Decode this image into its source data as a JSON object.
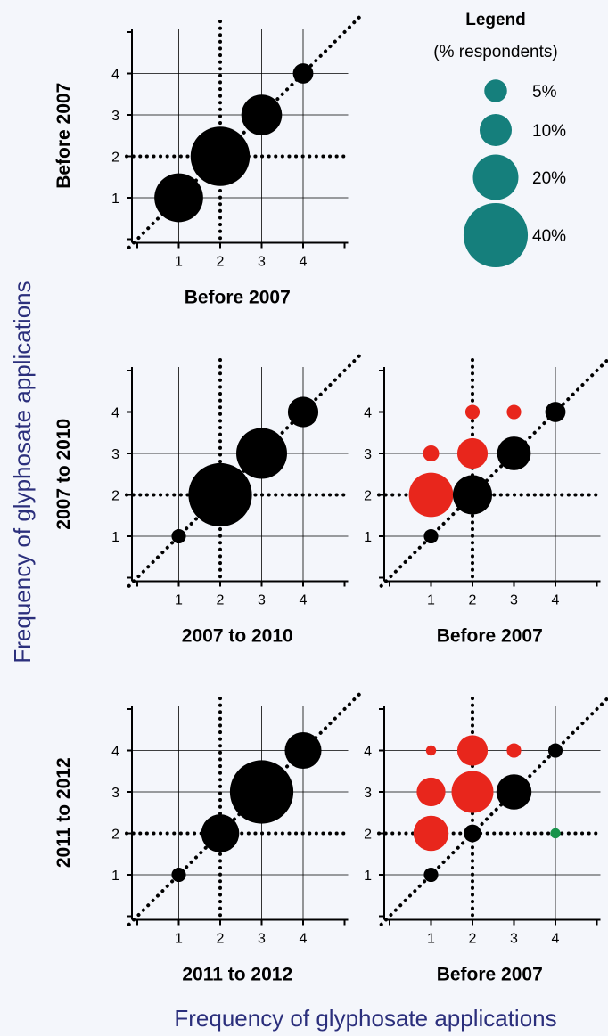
{
  "figure": {
    "ylabel": "Frequency of glyphosate applications",
    "xlabel": "Frequency of glyphosate applications"
  },
  "colors": {
    "same": "#000000",
    "increase": "#e8261c",
    "decrease": "#17934a",
    "legend": "#157f7c",
    "axis_title": "#2b2f7c",
    "grid": "#000000"
  },
  "legend": {
    "title": "Legend",
    "subtitle": "(% respondents)",
    "items": [
      {
        "label": "5%",
        "value": 5
      },
      {
        "label": "10%",
        "value": 10
      },
      {
        "label": "20%",
        "value": 20
      },
      {
        "label": "40%",
        "value": 40
      }
    ]
  },
  "chart_data": [
    {
      "type": "scatter",
      "id": "p1",
      "xlabel": "Before 2007",
      "ylabel": "Before 2007",
      "ticks": [
        1,
        2,
        3,
        4
      ],
      "xlim": [
        0,
        5
      ],
      "ylim": [
        0,
        5
      ],
      "reference_lines": {
        "x": 2,
        "y": 2,
        "diagonal": true
      },
      "points": [
        {
          "x": 1,
          "y": 1,
          "pct": 23,
          "group": "same"
        },
        {
          "x": 2,
          "y": 2,
          "pct": 34,
          "group": "same"
        },
        {
          "x": 3,
          "y": 3,
          "pct": 16,
          "group": "same"
        },
        {
          "x": 4,
          "y": 4,
          "pct": 4,
          "group": "same"
        }
      ]
    },
    {
      "type": "scatter",
      "id": "p2",
      "xlabel": "2007 to 2010",
      "ylabel": "2007 to 2010",
      "ticks": [
        1,
        2,
        3,
        4
      ],
      "xlim": [
        0,
        5
      ],
      "ylim": [
        0,
        5
      ],
      "reference_lines": {
        "x": 2,
        "y": 2,
        "diagonal": true
      },
      "points": [
        {
          "x": 1,
          "y": 1,
          "pct": 2,
          "group": "same"
        },
        {
          "x": 2,
          "y": 2,
          "pct": 39,
          "group": "same"
        },
        {
          "x": 3,
          "y": 3,
          "pct": 25,
          "group": "same"
        },
        {
          "x": 4,
          "y": 4,
          "pct": 9,
          "group": "same"
        }
      ]
    },
    {
      "type": "scatter",
      "id": "p3",
      "xlabel": "Before 2007",
      "ylabel": "",
      "ticks": [
        1,
        2,
        3,
        4
      ],
      "xlim": [
        0,
        5
      ],
      "ylim": [
        0,
        5
      ],
      "reference_lines": {
        "x": 2,
        "y": 2,
        "diagonal": true
      },
      "points": [
        {
          "x": 1,
          "y": 1,
          "pct": 2,
          "group": "same"
        },
        {
          "x": 1,
          "y": 2,
          "pct": 19,
          "group": "increase"
        },
        {
          "x": 1,
          "y": 3,
          "pct": 2.5,
          "group": "increase"
        },
        {
          "x": 2,
          "y": 2,
          "pct": 15,
          "group": "same"
        },
        {
          "x": 2,
          "y": 3,
          "pct": 9,
          "group": "increase"
        },
        {
          "x": 2,
          "y": 4,
          "pct": 2,
          "group": "increase"
        },
        {
          "x": 3,
          "y": 3,
          "pct": 11,
          "group": "same"
        },
        {
          "x": 3,
          "y": 4,
          "pct": 2,
          "group": "increase"
        },
        {
          "x": 4,
          "y": 4,
          "pct": 4,
          "group": "same"
        }
      ]
    },
    {
      "type": "scatter",
      "id": "p4",
      "xlabel": "2011 to 2012",
      "ylabel": "2011 to 2012",
      "ticks": [
        1,
        2,
        3,
        4
      ],
      "xlim": [
        0,
        5
      ],
      "ylim": [
        0,
        5
      ],
      "reference_lines": {
        "x": 2,
        "y": 2,
        "diagonal": true
      },
      "points": [
        {
          "x": 1,
          "y": 1,
          "pct": 2,
          "group": "same"
        },
        {
          "x": 2,
          "y": 2,
          "pct": 14,
          "group": "same"
        },
        {
          "x": 3,
          "y": 3,
          "pct": 39,
          "group": "same"
        },
        {
          "x": 4,
          "y": 4,
          "pct": 13,
          "group": "same"
        }
      ]
    },
    {
      "type": "scatter",
      "id": "p5",
      "xlabel": "Before 2007",
      "ylabel": "",
      "ticks": [
        1,
        2,
        3,
        4
      ],
      "xlim": [
        0,
        5
      ],
      "ylim": [
        0,
        5
      ],
      "reference_lines": {
        "x": 2,
        "y": 2,
        "diagonal": true
      },
      "points": [
        {
          "x": 1,
          "y": 1,
          "pct": 2,
          "group": "same"
        },
        {
          "x": 1,
          "y": 2,
          "pct": 12,
          "group": "increase"
        },
        {
          "x": 1,
          "y": 3,
          "pct": 8,
          "group": "increase"
        },
        {
          "x": 1,
          "y": 4,
          "pct": 1,
          "group": "increase"
        },
        {
          "x": 2,
          "y": 2,
          "pct": 3,
          "group": "same"
        },
        {
          "x": 2,
          "y": 3,
          "pct": 17,
          "group": "increase"
        },
        {
          "x": 2,
          "y": 4,
          "pct": 9,
          "group": "increase"
        },
        {
          "x": 3,
          "y": 3,
          "pct": 12,
          "group": "same"
        },
        {
          "x": 3,
          "y": 4,
          "pct": 2,
          "group": "increase"
        },
        {
          "x": 4,
          "y": 4,
          "pct": 2,
          "group": "same"
        },
        {
          "x": 4,
          "y": 2,
          "pct": 1,
          "group": "decrease"
        }
      ]
    }
  ]
}
